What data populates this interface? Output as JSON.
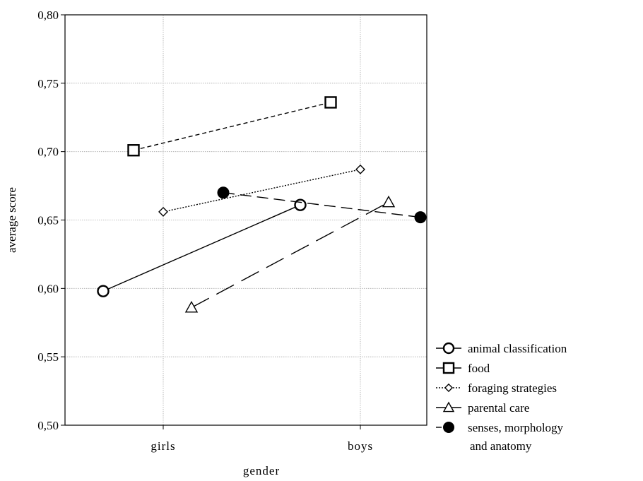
{
  "chart_data": {
    "type": "line",
    "xlabel": "gender",
    "ylabel": "average score",
    "categories": [
      "girls",
      "boys"
    ],
    "ylim": [
      0.5,
      0.8
    ],
    "yticks": [
      "0,50",
      "0,55",
      "0,60",
      "0,65",
      "0,70",
      "0,75",
      "0,80"
    ],
    "grid": true,
    "legend_position": "bottom-right",
    "series": [
      {
        "name": "animal classification",
        "marker": "open-circle",
        "line": "solid",
        "values": [
          0.598,
          0.661
        ]
      },
      {
        "name": "food",
        "marker": "open-square",
        "line": "short-dash",
        "values": [
          0.701,
          0.736
        ]
      },
      {
        "name": "foraging strategies",
        "marker": "open-diamond",
        "line": "dotted",
        "values": [
          0.656,
          0.687
        ]
      },
      {
        "name": "parental care",
        "marker": "open-triangle",
        "line": "long-dash",
        "values": [
          0.586,
          0.663
        ]
      },
      {
        "name": "senses, morphology and anatomy",
        "legend_lines": [
          "senses, morphology",
          "and anatomy"
        ],
        "marker": "filled-circle",
        "line": "dash",
        "values": [
          0.67,
          0.652
        ]
      }
    ]
  }
}
